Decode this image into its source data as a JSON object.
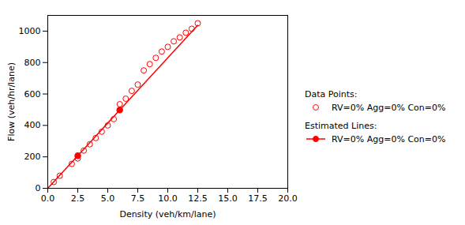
{
  "chart_data": {
    "type": "scatter",
    "xlabel": "Density (veh/km/lane)",
    "ylabel": "Flow (veh/hr/lane)",
    "xlim": [
      0.0,
      20.0
    ],
    "ylim": [
      0,
      1100
    ],
    "xticks": [
      {
        "value": 0,
        "label": "0.0"
      },
      2.5,
      {
        "value": 5,
        "label": "5.0"
      },
      7.5,
      {
        "value": 10,
        "label": "10.0"
      },
      12.5,
      {
        "value": 15,
        "label": "15.0"
      },
      17.5,
      {
        "value": 20,
        "label": "20.0"
      }
    ],
    "yticks": [
      0,
      200,
      400,
      600,
      800,
      1000
    ],
    "grid": false,
    "legend": "right",
    "series": [
      {
        "name": "RV=0% Agg=0% Con=0%",
        "legend_title": "Data Points:",
        "type": "scatter",
        "marker": "open_circle",
        "color": "#FF0000",
        "x": [
          0.5,
          1.0,
          2.0,
          2.5,
          3.0,
          3.5,
          4.0,
          4.5,
          5.0,
          5.5,
          6.0,
          6.5,
          7.0,
          7.5,
          8.0,
          8.5,
          9.0,
          9.5,
          10.0,
          10.5,
          11.0,
          11.5,
          12.0,
          12.5
        ],
        "values": [
          40,
          80,
          155,
          190,
          240,
          280,
          320,
          360,
          400,
          440,
          535,
          570,
          620,
          660,
          750,
          790,
          830,
          870,
          900,
          935,
          960,
          990,
          1015,
          1050
        ]
      },
      {
        "name": "RV=0% Agg=0% Con=0%",
        "legend_title": "Estimated Lines:",
        "type": "line",
        "marker": "filled_circle",
        "line_style": "solid",
        "color": "#FF0000",
        "x": [
          0.0,
          0.5,
          1.0,
          2.0,
          2.5,
          3.0,
          4.0,
          5.0,
          6.0,
          7.0,
          8.0,
          9.0,
          10.0,
          11.0,
          12.0,
          12.5
        ],
        "values": [
          0,
          41.5,
          83,
          166,
          207.5,
          249,
          332,
          415,
          498,
          581,
          664,
          747,
          830,
          913,
          996,
          1037.5
        ],
        "marker_x": [
          2.5,
          6.0
        ],
        "marker_values": [
          207.5,
          498
        ]
      }
    ]
  }
}
